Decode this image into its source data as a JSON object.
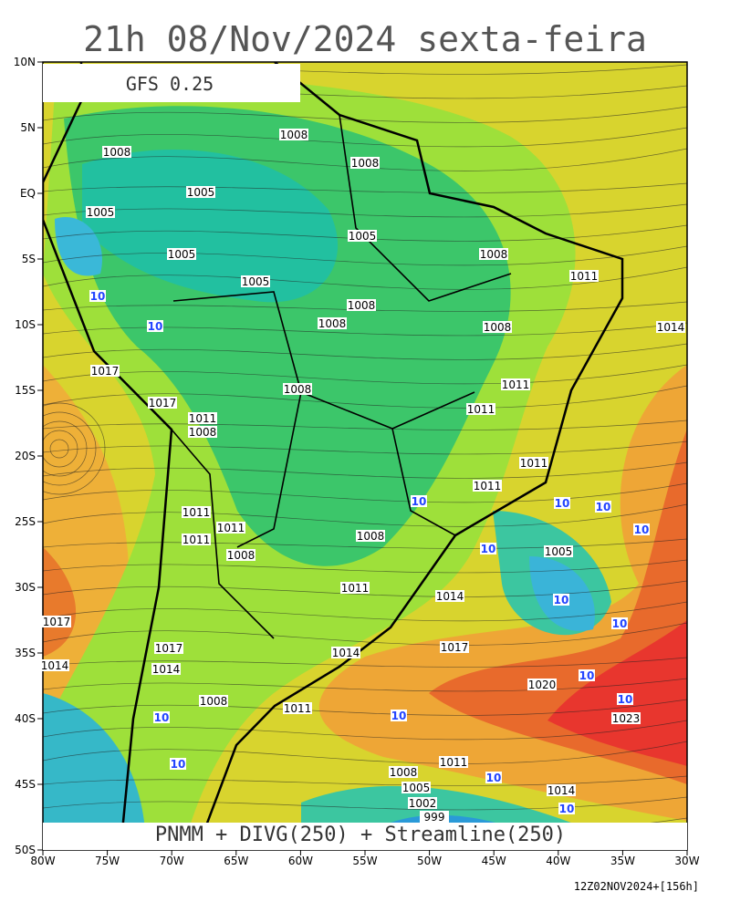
{
  "header": {
    "title": "21h 08/Nov/2024 sexta-feira",
    "model": "GFS 0.25"
  },
  "footer": {
    "fields": "PNMM + DIVG(250) + Streamline(250)",
    "run": "12Z02NOV2024+[156h]"
  },
  "lat_ticks": [
    "10N",
    "5N",
    "EQ",
    "5S",
    "10S",
    "15S",
    "20S",
    "25S",
    "30S",
    "35S",
    "40S",
    "45S",
    "50S"
  ],
  "lon_ticks": [
    "80W",
    "75W",
    "70W",
    "65W",
    "60W",
    "55W",
    "50W",
    "45W",
    "40W",
    "35W",
    "30W"
  ],
  "contour_labels": [
    "1008",
    "1008",
    "1008",
    "1005",
    "1005",
    "1005",
    "1005",
    "1005",
    "1008",
    "1011",
    "1008",
    "1008",
    "1008",
    "1014",
    "1017",
    "1008",
    "1011",
    "1011",
    "1017",
    "1011",
    "1008",
    "1011",
    "1011",
    "1011",
    "1011",
    "1008",
    "1011",
    "1008",
    "1005",
    "1011",
    "1014",
    "1017",
    "1017",
    "1014",
    "1017",
    "1014",
    "1020",
    "1008",
    "1011",
    "1023",
    "1008",
    "1005",
    "1002",
    "999",
    "1014",
    "1011",
    "1014"
  ],
  "divergence_labels": [
    "10",
    "10",
    "10",
    "10",
    "10",
    "10",
    "10",
    "10",
    "10",
    "10",
    "10",
    "10",
    "10",
    "10",
    "10",
    "10"
  ]
}
